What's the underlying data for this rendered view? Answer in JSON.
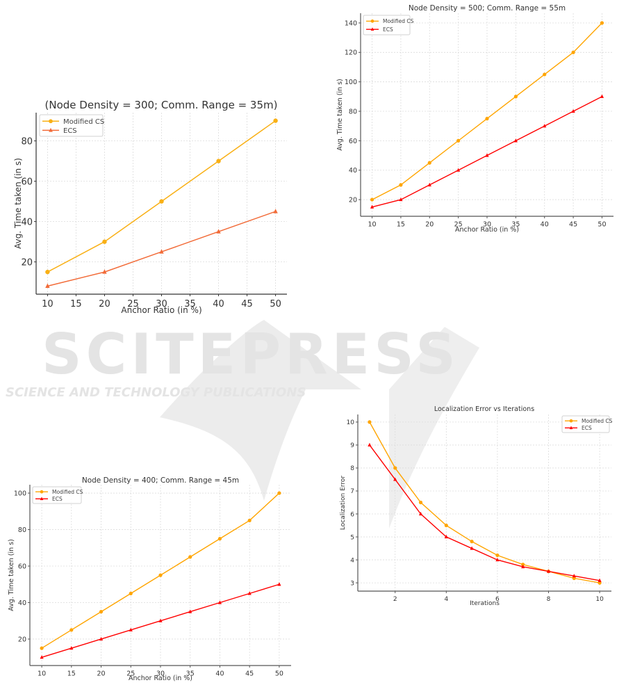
{
  "watermark": {
    "main": "SCITEPRESS",
    "sub": "SCIENCE AND TECHNOLOGY PUBLICATIONS"
  },
  "chart_data": [
    {
      "type": "line",
      "title": "(Node Density = 300; Comm. Range = 35m)",
      "xlabel": "Anchor Ratio (in %)",
      "ylabel": "Avg. Time taken (in s)",
      "xlim": [
        8,
        52
      ],
      "ylim": [
        4,
        94
      ],
      "xticks": [
        10,
        15,
        20,
        25,
        30,
        35,
        40,
        45,
        50
      ],
      "yticks": [
        20,
        40,
        60,
        80
      ],
      "grid": true,
      "legend": "top-left",
      "series": [
        {
          "name": "Modified CS",
          "color": "#f9b015",
          "marker": "circle",
          "x": [
            10,
            20,
            30,
            40,
            50
          ],
          "values": [
            15,
            30,
            50,
            70,
            90
          ]
        },
        {
          "name": "ECS",
          "color": "#f26b38",
          "marker": "triangle",
          "x": [
            10,
            20,
            30,
            40,
            50
          ],
          "values": [
            8,
            15,
            25,
            35,
            45
          ]
        }
      ]
    },
    {
      "type": "line",
      "title": "Node Density = 500; Comm. Range = 55m",
      "xlabel": "Anchor Ratio (in %)",
      "ylabel": "Avg. Time taken (in s)",
      "xlim": [
        8,
        52
      ],
      "ylim": [
        8.7,
        146.6
      ],
      "xticks": [
        10,
        15,
        20,
        25,
        30,
        35,
        40,
        45,
        50
      ],
      "yticks": [
        20,
        40,
        60,
        80,
        100,
        120,
        140
      ],
      "grid": true,
      "legend": "top-left",
      "series": [
        {
          "name": "Modified CS",
          "color": "#ffa500",
          "marker": "circle",
          "x": [
            10,
            15,
            20,
            25,
            30,
            35,
            40,
            45,
            50
          ],
          "values": [
            20,
            30,
            45,
            60,
            75,
            90,
            105,
            120,
            140
          ]
        },
        {
          "name": "ECS",
          "color": "#ff0000",
          "marker": "triangle",
          "x": [
            10,
            15,
            20,
            25,
            30,
            35,
            40,
            45,
            50
          ],
          "values": [
            15,
            20,
            30,
            40,
            50,
            60,
            70,
            80,
            90
          ]
        }
      ]
    },
    {
      "type": "line",
      "title": "Node Density = 400; Comm. Range = 45m",
      "xlabel": "Anchor Ratio (in %)",
      "ylabel": "Avg. Time taken (in s)",
      "xlim": [
        8,
        52
      ],
      "ylim": [
        5.5,
        104.6
      ],
      "xticks": [
        10,
        15,
        20,
        25,
        30,
        35,
        40,
        45,
        50
      ],
      "yticks": [
        20,
        40,
        60,
        80,
        100
      ],
      "grid": true,
      "legend": "top-left",
      "series": [
        {
          "name": "Modified CS",
          "color": "#ffa500",
          "marker": "circle",
          "x": [
            10,
            15,
            20,
            25,
            30,
            35,
            40,
            45,
            50
          ],
          "values": [
            15,
            25,
            35,
            45,
            55,
            65,
            75,
            85,
            100
          ]
        },
        {
          "name": "ECS",
          "color": "#ff0000",
          "marker": "triangle",
          "x": [
            10,
            15,
            20,
            25,
            30,
            35,
            40,
            45,
            50
          ],
          "values": [
            10,
            15,
            20,
            25,
            30,
            35,
            40,
            45,
            50
          ]
        }
      ]
    },
    {
      "type": "line",
      "title": "Localization Error vs Iterations",
      "xlabel": "Iterations",
      "ylabel": "Localization Error",
      "xlim": [
        0.54,
        10.46
      ],
      "ylim": [
        2.64,
        10.33
      ],
      "xticks": [
        2,
        4,
        6,
        8,
        10
      ],
      "yticks": [
        3,
        4,
        5,
        6,
        7,
        8,
        9,
        10
      ],
      "grid": true,
      "legend": "top-right",
      "series": [
        {
          "name": "Modified CS",
          "color": "#ffa500",
          "marker": "circle",
          "x": [
            1,
            2,
            3,
            4,
            5,
            6,
            7,
            8,
            9,
            10
          ],
          "values": [
            10,
            8,
            6.5,
            5.5,
            4.8,
            4.2,
            3.8,
            3.5,
            3.2,
            3.0
          ]
        },
        {
          "name": "ECS",
          "color": "#ff0000",
          "marker": "triangle",
          "x": [
            1,
            2,
            3,
            4,
            5,
            6,
            7,
            8,
            9,
            10
          ],
          "values": [
            9,
            7.5,
            6,
            5,
            4.5,
            4,
            3.7,
            3.5,
            3.3,
            3.1
          ]
        }
      ]
    }
  ]
}
